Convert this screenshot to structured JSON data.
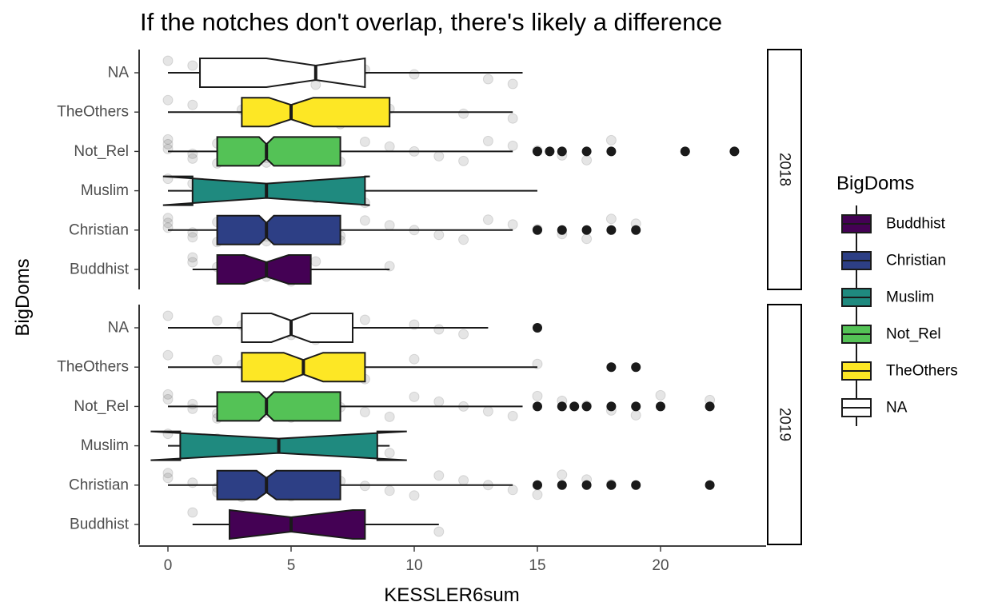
{
  "chart_data": {
    "type": "boxplot",
    "title": "If the notches don't overlap, there's likely a difference",
    "xlabel": "KESSLER6sum",
    "ylabel": "BigDoms",
    "xlim": [
      -1.2,
      24.2
    ],
    "x_ticks": [
      0,
      5,
      10,
      15,
      20
    ],
    "categories": [
      "Buddhist",
      "Christian",
      "Muslim",
      "Not_Rel",
      "TheOthers",
      "NA"
    ],
    "category_labels": [
      "Buddhist",
      "Christian",
      "Muslim",
      "Not_Rel",
      "TheOthers",
      "NA"
    ],
    "legend": {
      "title": "BigDoms",
      "position": "right",
      "entries": [
        "Buddhist",
        "Christian",
        "Muslim",
        "Not_Rel",
        "TheOthers",
        "NA"
      ]
    },
    "colors": {
      "Buddhist": "#440154",
      "Christian": "#2d3f85",
      "Muslim": "#1f8a7f",
      "Not_Rel": "#54c256",
      "TheOthers": "#fde725",
      "NA": "#ffffff"
    },
    "facets": [
      {
        "label": "2018",
        "boxes": [
          {
            "group": "Buddhist",
            "min": 1,
            "q1": 2,
            "median": 4,
            "q3": 5.8,
            "max": 9,
            "notch_low": 3.1,
            "notch_high": 4.9,
            "outliers": []
          },
          {
            "group": "Christian",
            "min": 0,
            "q1": 2,
            "median": 4,
            "q3": 7,
            "max": 14,
            "notch_low": 3.7,
            "notch_high": 4.3,
            "outliers": [
              15,
              16,
              17,
              18,
              19
            ]
          },
          {
            "group": "Muslim",
            "min": 0,
            "q1": 1,
            "median": 4,
            "q3": 8,
            "max": 15,
            "notch_low": -0.2,
            "notch_high": 8.2,
            "outliers": []
          },
          {
            "group": "Not_Rel",
            "min": 0,
            "q1": 2,
            "median": 4,
            "q3": 7,
            "max": 14,
            "notch_low": 3.7,
            "notch_high": 4.3,
            "outliers": [
              15,
              15.5,
              16,
              17,
              18,
              21,
              23
            ]
          },
          {
            "group": "TheOthers",
            "min": 0,
            "q1": 3,
            "median": 5,
            "q3": 9,
            "max": 14,
            "notch_low": 4.1,
            "notch_high": 5.9,
            "outliers": []
          },
          {
            "group": "NA",
            "min": 0,
            "q1": 1.3,
            "median": 6,
            "q3": 8,
            "max": 14.4,
            "notch_low": 4.0,
            "notch_high": 8.0,
            "outliers": []
          }
        ]
      },
      {
        "label": "2019",
        "boxes": [
          {
            "group": "Buddhist",
            "min": 1,
            "q1": 2.5,
            "median": 5,
            "q3": 8,
            "max": 11,
            "notch_low": 2.5,
            "notch_high": 7.5,
            "outliers": []
          },
          {
            "group": "Christian",
            "min": 0,
            "q1": 2,
            "median": 4,
            "q3": 7,
            "max": 14,
            "notch_low": 3.6,
            "notch_high": 4.4,
            "outliers": [
              15,
              16,
              17,
              18,
              19,
              22
            ]
          },
          {
            "group": "Muslim",
            "min": 0,
            "q1": 0.5,
            "median": 4.5,
            "q3": 8.5,
            "max": 9,
            "notch_low": -0.7,
            "notch_high": 9.7,
            "outliers": []
          },
          {
            "group": "Not_Rel",
            "min": 0,
            "q1": 2,
            "median": 4,
            "q3": 7,
            "max": 14.4,
            "notch_low": 3.7,
            "notch_high": 4.3,
            "outliers": [
              15,
              16,
              16.5,
              17,
              18,
              19,
              20,
              22
            ]
          },
          {
            "group": "TheOthers",
            "min": 0,
            "q1": 3,
            "median": 5.5,
            "q3": 8,
            "max": 15,
            "notch_low": 4.7,
            "notch_high": 6.3,
            "outliers": [
              18,
              19
            ]
          },
          {
            "group": "NA",
            "min": 0,
            "q1": 3,
            "median": 5,
            "q3": 7.5,
            "max": 13,
            "notch_low": 4.2,
            "notch_high": 5.8,
            "outliers": [
              15
            ]
          }
        ]
      }
    ],
    "jitter_points": {
      "2018": {
        "Buddhist": [
          1,
          1,
          2,
          3,
          4,
          5,
          6,
          9
        ],
        "Christian": [
          0,
          0,
          0,
          1,
          1,
          2,
          2,
          3,
          3,
          4,
          4,
          5,
          5,
          6,
          7,
          7,
          8,
          9,
          10,
          11,
          12,
          13,
          14,
          15,
          16,
          17,
          18,
          19
        ],
        "Muslim": [
          0,
          1,
          2,
          4,
          6,
          8
        ],
        "Not_Rel": [
          0,
          0,
          0,
          1,
          1,
          2,
          2,
          3,
          3,
          4,
          4,
          5,
          5,
          6,
          6,
          7,
          8,
          9,
          10,
          11,
          12,
          13,
          14,
          15,
          16,
          17,
          18
        ],
        "TheOthers": [
          0,
          1,
          3,
          5,
          6,
          7,
          8,
          9,
          12,
          14
        ],
        "NA": [
          0,
          1,
          2,
          4,
          5,
          6,
          7,
          8,
          10,
          13,
          14
        ]
      },
      "2019": {
        "Buddhist": [
          1,
          3,
          5,
          7,
          11
        ],
        "Christian": [
          0,
          0,
          1,
          2,
          2,
          3,
          3,
          4,
          4,
          5,
          5,
          6,
          7,
          8,
          9,
          10,
          11,
          12,
          13,
          14,
          15,
          16,
          17,
          18
        ],
        "Muslim": [
          0,
          2,
          5,
          8,
          9
        ],
        "Not_Rel": [
          0,
          0,
          1,
          1,
          2,
          2,
          3,
          3,
          4,
          4,
          5,
          5,
          6,
          7,
          8,
          9,
          10,
          11,
          12,
          13,
          14,
          15,
          16,
          17,
          18,
          19,
          20,
          22
        ],
        "TheOthers": [
          0,
          2,
          3,
          5,
          6,
          8,
          10,
          15
        ],
        "NA": [
          0,
          2,
          3,
          4,
          5,
          6,
          8,
          10,
          11,
          12
        ]
      }
    }
  }
}
